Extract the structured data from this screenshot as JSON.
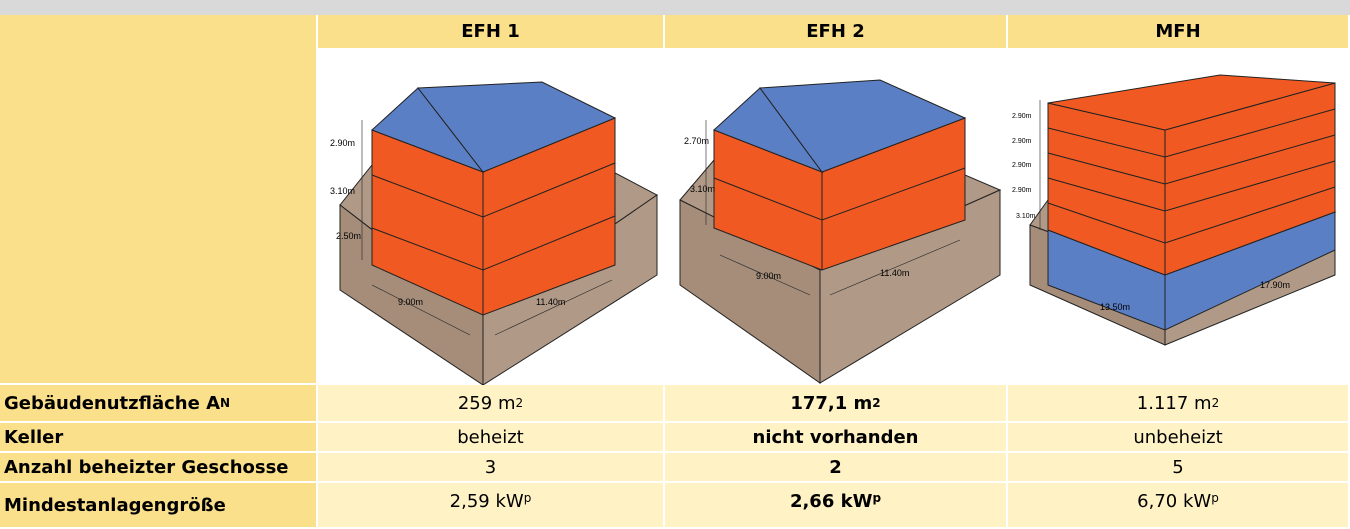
{
  "header": {
    "columns": [
      "EFH 1",
      "EFH 2",
      "MFH"
    ]
  },
  "figures": [
    {
      "labels": [
        "2.90m",
        "3.10m",
        "2.50m",
        "9.00m",
        "11.40m"
      ]
    },
    {
      "labels": [
        "2.70m",
        "3.10m",
        "9.00m",
        "11.40m"
      ]
    },
    {
      "labels": [
        "2.90m",
        "2.90m",
        "2.90m",
        "2.90m",
        "3.10m",
        "13.50m",
        "17.90m"
      ]
    }
  ],
  "table": {
    "rows": [
      {
        "label": "Gebäudenutzfläche A",
        "label_sub": "N",
        "cells": [
          {
            "text": "259 m",
            "sup": "2"
          },
          {
            "text": "177,1 m",
            "sup": "2"
          },
          {
            "text": "1.117 m",
            "sup": "2"
          }
        ]
      },
      {
        "label": "Keller",
        "cells": [
          {
            "text": "beheizt"
          },
          {
            "text": "nicht vorhanden"
          },
          {
            "text": "unbeheizt"
          }
        ]
      },
      {
        "label": "Anzahl beheizter Geschosse",
        "cells": [
          {
            "text": "3"
          },
          {
            "text": "2"
          },
          {
            "text": "5"
          }
        ]
      },
      {
        "label": "Mindestanlagengröße",
        "cells": [
          {
            "text": "2,59 kW",
            "sub": "p"
          },
          {
            "text": "2,66 kW",
            "sub": "p"
          },
          {
            "text": "6,70 kW",
            "sub": "p"
          }
        ]
      }
    ]
  }
}
